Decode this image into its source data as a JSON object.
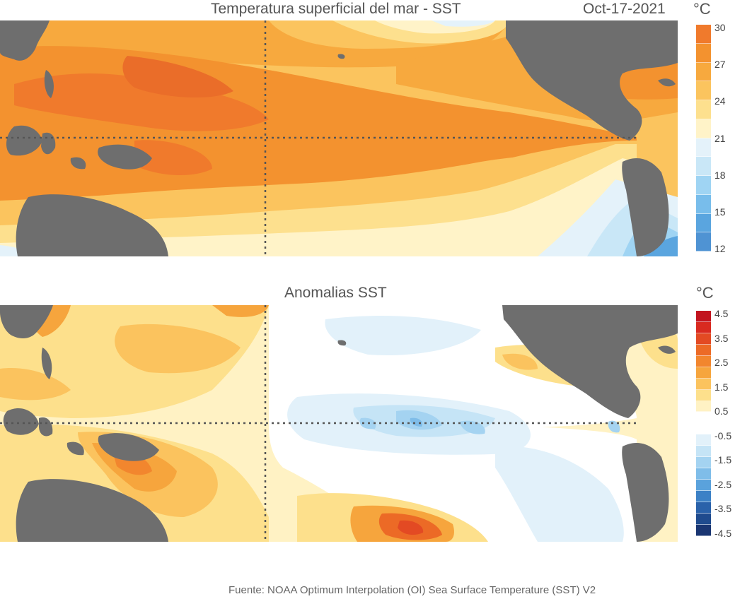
{
  "sst_panel": {
    "title": "Temperatura superficial del mar - SST",
    "date": "Oct-17-2021",
    "unit": "°C",
    "colorbar_labels": [
      "30",
      "27",
      "24",
      "21",
      "18",
      "15",
      "12"
    ],
    "colorbar_colors": [
      "#f07a2c",
      "#f3922f",
      "#f7a93e",
      "#fbc45e",
      "#fde08e",
      "#fff3c8",
      "#e4f2fa",
      "#c9e7f7",
      "#9fd4f3",
      "#78bdeb",
      "#5aa5df",
      "#4f93d3"
    ]
  },
  "anomaly_panel": {
    "title": "Anomalias SST",
    "unit": "°C",
    "colorbar_labels": [
      "4.5",
      "3.5",
      "2.5",
      "1.5",
      "0.5",
      "-0.5",
      "-1.5",
      "-2.5",
      "-3.5",
      "-4.5"
    ],
    "colorbar_colors": [
      "#c2141f",
      "#d92a20",
      "#e34a23",
      "#ec6a26",
      "#f2862e",
      "#f6a53d",
      "#fbc35e",
      "#fde08c",
      "#fff2c4",
      "#ffffff",
      "#ffffff",
      "#e2f1fa",
      "#c5e4f6",
      "#a4d3f1",
      "#7fbde9",
      "#5aa2dc",
      "#3c81c6",
      "#2a62aa",
      "#1f4b8e",
      "#1a3672"
    ]
  },
  "map_colors": {
    "land": "#6e6e6e",
    "ocean_grid": "#555555"
  },
  "source_text": "Fuente: NOAA Optimum Interpolation (OI) Sea Surface Temperature (SST) V2"
}
